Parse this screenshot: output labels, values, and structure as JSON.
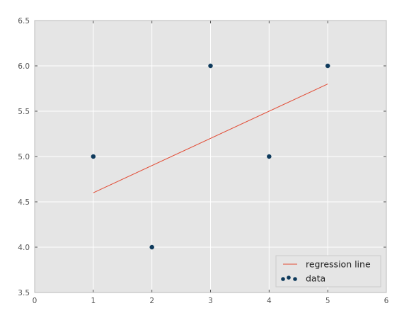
{
  "chart_data": {
    "type": "scatter",
    "title": "",
    "xlabel": "",
    "ylabel": "",
    "xlim": [
      0,
      6
    ],
    "ylim": [
      3.5,
      6.5
    ],
    "xticks": [
      "0",
      "1",
      "2",
      "3",
      "4",
      "5",
      "6"
    ],
    "yticks": [
      "3.5",
      "4.0",
      "4.5",
      "5.0",
      "5.5",
      "6.0",
      "6.5"
    ],
    "grid": true,
    "legend_position": "bottom-right",
    "series": [
      {
        "name": "regression line",
        "kind": "line",
        "color": "#E24A33",
        "x": [
          1,
          5
        ],
        "y": [
          4.6,
          5.8
        ]
      },
      {
        "name": "data",
        "kind": "scatter",
        "color": "#0E3A5C",
        "x": [
          1,
          2,
          3,
          4,
          5
        ],
        "y": [
          5,
          4,
          6,
          5,
          6
        ]
      }
    ]
  }
}
